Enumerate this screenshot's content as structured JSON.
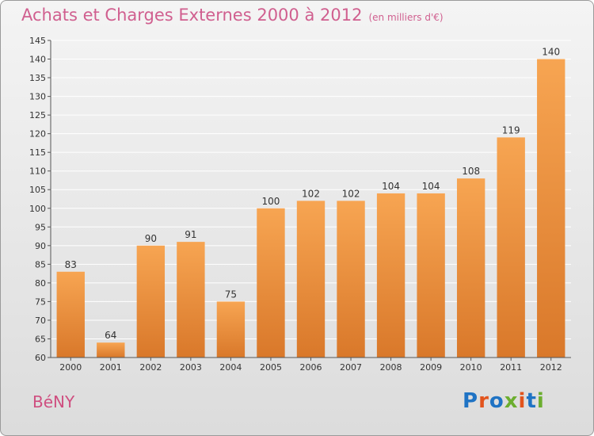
{
  "title": "Achats et Charges Externes 2000 à 2012",
  "subtitle": "(en milliers d'€)",
  "commune": "BéNY",
  "logo": {
    "text": "Proxiti",
    "letter_colors": [
      "#1f73c4",
      "#e2541d",
      "#1f73c4",
      "#6cae2f",
      "#e2541d",
      "#1f73c4",
      "#6cae2f"
    ]
  },
  "colors": {
    "title": "#d05f8f",
    "bar_top": "#f7a552",
    "bar_bottom": "#d9782a",
    "grid": "#ffffff"
  },
  "chart_data": {
    "type": "bar",
    "title": "Achats et Charges Externes 2000 à 2012",
    "subtitle": "(en milliers d'€)",
    "categories": [
      "2000",
      "2001",
      "2002",
      "2003",
      "2004",
      "2005",
      "2006",
      "2007",
      "2008",
      "2009",
      "2010",
      "2011",
      "2012"
    ],
    "values": [
      83,
      64,
      90,
      91,
      75,
      100,
      102,
      102,
      104,
      104,
      108,
      119,
      140
    ],
    "ylim": [
      60,
      145
    ],
    "yticks": [
      60,
      65,
      70,
      75,
      80,
      85,
      90,
      95,
      100,
      105,
      110,
      115,
      120,
      125,
      130,
      135,
      140,
      145
    ],
    "grid": true
  }
}
